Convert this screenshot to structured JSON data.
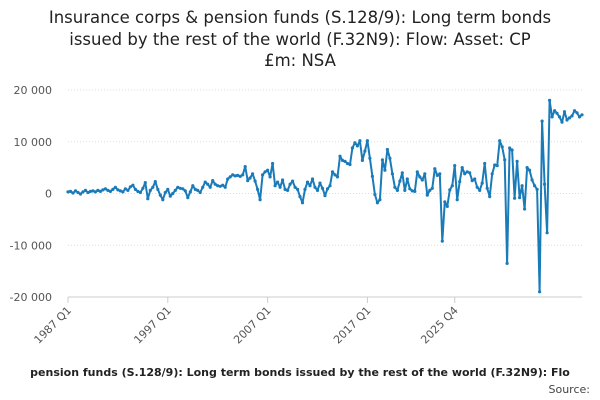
{
  "chart_data": {
    "type": "line",
    "title_lines": [
      "Insurance corps & pension funds (S.128/9): Long term bonds",
      "issued by the rest of the world (F.32N9): Flow: Asset: CP",
      "£m: NSA"
    ],
    "legend_text": "pension funds (S.128/9): Long term bonds issued by the rest of the world (F.32N9): Flo",
    "source_label": "Source:",
    "x_tick_labels": [
      "1987 Q1",
      "1997 Q1",
      "2007 Q1",
      "2017 Q1",
      "2025 Q4"
    ],
    "y_tick_labels": [
      "20 000",
      "10 000",
      "0",
      "-10 000",
      "-20 000"
    ],
    "ylim": [
      -20000,
      20000
    ],
    "x_start_year": 1987,
    "x_start_quarter": 1,
    "grid": true,
    "series": [
      {
        "color": "#1a7bb9",
        "values": [
          300,
          400,
          100,
          500,
          200,
          -100,
          300,
          600,
          200,
          400,
          500,
          300,
          600,
          400,
          700,
          900,
          600,
          400,
          800,
          1200,
          700,
          500,
          300,
          900,
          600,
          1300,
          1600,
          800,
          400,
          200,
          1000,
          2100,
          -1000,
          600,
          1200,
          2300,
          800,
          -300,
          -1200,
          200,
          800,
          -500,
          0,
          600,
          1200,
          1000,
          900,
          500,
          -800,
          300,
          1500,
          800,
          600,
          200,
          1200,
          2200,
          1800,
          1200,
          2500,
          1800,
          1500,
          1400,
          1600,
          1200,
          2800,
          3200,
          3600,
          3400,
          3500,
          3300,
          3600,
          5200,
          2500,
          3000,
          3800,
          2400,
          800,
          -1200,
          3600,
          4200,
          4500,
          3200,
          5800,
          1500,
          2200,
          1200,
          2600,
          800,
          600,
          1800,
          2400,
          1200,
          800,
          -600,
          -1800,
          800,
          2200,
          1500,
          2800,
          1200,
          600,
          2000,
          1000,
          -400,
          900,
          1500,
          4200,
          3600,
          3200,
          7200,
          6400,
          6200,
          5800,
          5600,
          8800,
          9800,
          9200,
          10200,
          6400,
          8200,
          10200,
          6800,
          3300,
          -200,
          -1800,
          -1200,
          6500,
          4500,
          8500,
          6800,
          3800,
          1200,
          600,
          2400,
          4000,
          600,
          2800,
          900,
          500,
          400,
          4200,
          3200,
          2600,
          3800,
          -300,
          600,
          1000,
          4800,
          3500,
          3800,
          -9200,
          -1600,
          -2500,
          700,
          1500,
          5400,
          -1200,
          2300,
          5000,
          3800,
          4200,
          4000,
          2500,
          2800,
          1200,
          600,
          2000,
          5800,
          1000,
          -600,
          3800,
          5500,
          5400,
          10200,
          9000,
          6500,
          -13500,
          8800,
          8400,
          -900,
          6200,
          -800,
          1500,
          -3000,
          5000,
          4500,
          2600,
          1500,
          800,
          -19000,
          14000,
          1800,
          -7600,
          18000,
          14800,
          16000,
          15500,
          14800,
          13800,
          15800,
          14200,
          14600,
          15000,
          16000,
          15600,
          14800,
          15200
        ]
      }
    ]
  }
}
